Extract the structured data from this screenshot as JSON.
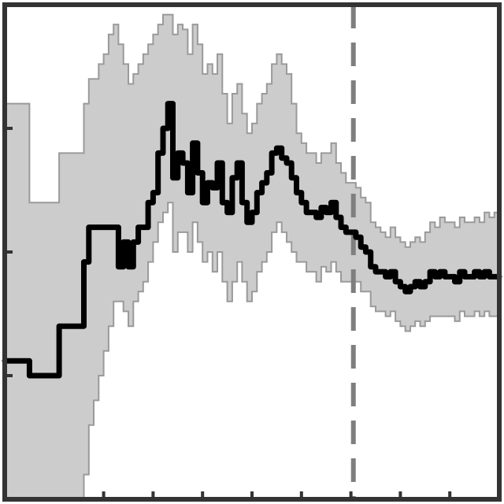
{
  "chart_data": {
    "type": "line",
    "title": "",
    "xlabel": "",
    "ylabel": "",
    "xlim": [
      0,
      100
    ],
    "ylim": [
      0,
      100
    ],
    "grid": false,
    "legend": "none",
    "colors": {
      "line": "#000000",
      "band_fill": "#cccccc",
      "band_edge": "#9a9a9a",
      "marker": "#7f7f7f",
      "frame": "#333333"
    },
    "vertical_marker_x": 70.5,
    "x_ticks_bottom": [
      20,
      30,
      40,
      50,
      60,
      70,
      80,
      90
    ],
    "y_ticks_left": [
      25,
      50,
      75
    ],
    "series": [
      {
        "x": [
          1,
          2,
          3,
          4,
          5,
          6,
          7,
          8,
          9,
          10,
          11,
          12,
          13,
          14,
          15,
          16,
          17,
          18,
          19,
          20,
          21,
          22,
          23,
          24,
          25,
          26,
          27,
          28,
          29,
          30,
          31,
          32,
          33,
          34,
          35,
          36,
          37,
          38,
          39,
          40,
          41,
          42,
          43,
          44,
          45,
          46,
          47,
          48,
          49,
          50,
          51,
          52,
          53,
          54,
          55,
          56,
          57,
          58,
          59,
          60,
          61,
          62,
          63,
          64,
          65,
          66,
          67,
          68,
          69,
          70,
          71,
          72,
          73,
          74,
          75,
          76,
          77,
          78,
          79,
          80,
          81,
          82,
          83,
          84,
          85,
          86,
          87,
          88,
          89,
          90,
          91,
          92,
          93,
          94,
          95,
          96,
          97,
          98,
          99,
          100
        ],
        "values": [
          28,
          28,
          28,
          28,
          28,
          25,
          25,
          25,
          25,
          25,
          25,
          35,
          35,
          35,
          35,
          35,
          48,
          55,
          55,
          55,
          55,
          55,
          55,
          47,
          52,
          47,
          52,
          55,
          55,
          60,
          62,
          70,
          75,
          80,
          65,
          70,
          68,
          62,
          72,
          66,
          60,
          64,
          63,
          68,
          60,
          58,
          65,
          68,
          60,
          56,
          58,
          62,
          64,
          66,
          70,
          71,
          69,
          68,
          65,
          62,
          60,
          58,
          58,
          57,
          59,
          58,
          60,
          57,
          55,
          54,
          54,
          53,
          51,
          50,
          47,
          46,
          46,
          45,
          46,
          44,
          43,
          42,
          43,
          44,
          43,
          44,
          46,
          45,
          46,
          45,
          45,
          44,
          46,
          45,
          45,
          46,
          45,
          46,
          45,
          45
        ]
      }
    ],
    "band": {
      "upper": [
        80,
        80,
        80,
        80,
        80,
        60,
        60,
        60,
        60,
        60,
        60,
        70,
        70,
        70,
        70,
        70,
        80,
        85,
        85,
        88,
        90,
        94,
        96,
        92,
        88,
        84,
        86,
        88,
        90,
        92,
        94,
        96,
        98,
        98,
        94,
        96,
        95,
        90,
        96,
        92,
        86,
        88,
        86,
        90,
        82,
        76,
        82,
        84,
        78,
        74,
        76,
        80,
        82,
        84,
        88,
        90,
        88,
        86,
        80,
        74,
        72,
        70,
        70,
        68,
        70,
        70,
        72,
        68,
        66,
        64,
        64,
        63,
        61,
        60,
        56,
        55,
        54,
        53,
        55,
        53,
        52,
        51,
        52,
        53,
        52,
        54,
        56,
        55,
        57,
        56,
        56,
        55,
        57,
        56,
        56,
        57,
        56,
        58,
        57,
        58
      ],
      "lower": [
        0,
        0,
        0,
        0,
        0,
        0,
        0,
        0,
        0,
        0,
        0,
        0,
        0,
        0,
        0,
        0,
        5,
        15,
        20,
        25,
        30,
        35,
        40,
        40,
        38,
        35,
        40,
        42,
        44,
        48,
        52,
        56,
        58,
        60,
        50,
        54,
        54,
        50,
        56,
        52,
        48,
        50,
        46,
        50,
        44,
        40,
        44,
        48,
        44,
        40,
        42,
        46,
        48,
        50,
        54,
        56,
        54,
        52,
        50,
        48,
        48,
        46,
        46,
        44,
        47,
        46,
        48,
        46,
        44,
        44,
        44,
        44,
        42,
        42,
        39,
        38,
        38,
        37,
        38,
        36,
        35,
        34,
        35,
        36,
        35,
        36,
        37,
        37,
        37,
        37,
        37,
        36,
        38,
        37,
        37,
        38,
        37,
        38,
        37,
        37
      ]
    }
  }
}
